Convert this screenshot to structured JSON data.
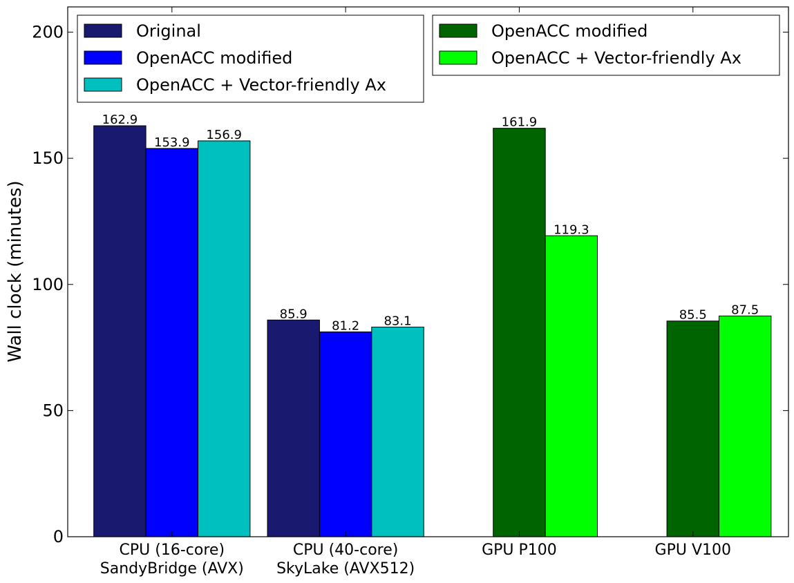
{
  "chart_data": {
    "type": "bar",
    "title": "",
    "xlabel": "",
    "ylabel": "Wall clock (minutes)",
    "ylim": [
      0,
      210
    ],
    "yticks": [
      0,
      50,
      100,
      150,
      200
    ],
    "grid": false,
    "categories": [
      {
        "line1": "CPU (16-core)",
        "line2": "SandyBridge (AVX)"
      },
      {
        "line1": "CPU (40-core)",
        "line2": "SkyLake (AVX512)"
      },
      {
        "line1": "GPU P100",
        "line2": ""
      },
      {
        "line1": "GPU V100",
        "line2": ""
      }
    ],
    "series": [
      {
        "name": "Original",
        "color": "#191970",
        "values": [
          162.9,
          85.9,
          null,
          null
        ]
      },
      {
        "name": "OpenACC modified",
        "color": "#0000ff",
        "values": [
          153.9,
          81.2,
          null,
          null
        ]
      },
      {
        "name": "OpenACC + Vector-friendly Ax",
        "color": "#00bfbf",
        "values": [
          156.9,
          83.1,
          null,
          null
        ]
      },
      {
        "name": "OpenACC modified",
        "color": "#006400",
        "values": [
          null,
          null,
          161.9,
          85.5
        ]
      },
      {
        "name": "OpenACC + Vector-friendly Ax",
        "color": "#00ff00",
        "values": [
          null,
          null,
          119.3,
          87.5
        ]
      }
    ],
    "legends": [
      {
        "placement": "top-left",
        "series": [
          0,
          1,
          2
        ]
      },
      {
        "placement": "top-right",
        "series": [
          3,
          4
        ]
      }
    ]
  }
}
